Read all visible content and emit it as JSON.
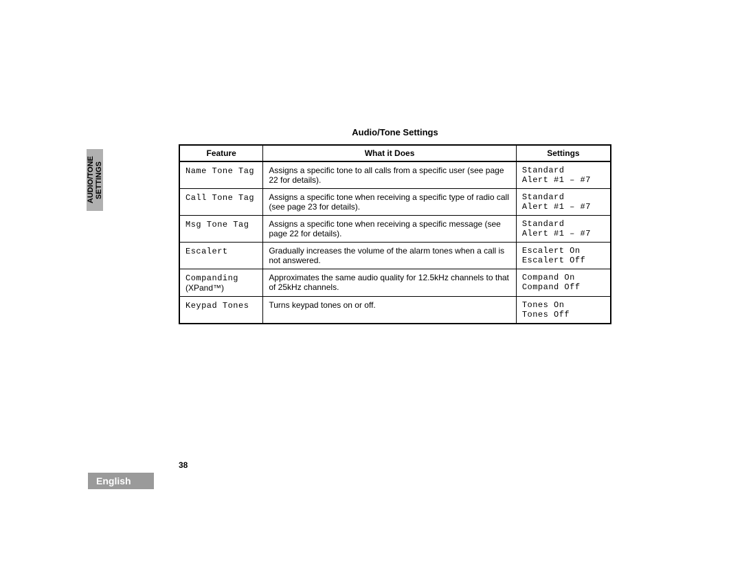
{
  "sideTab": "AUDIO/TONE\nSETTINGS",
  "title": "Audio/Tone Settings",
  "table": {
    "headers": {
      "feature": "Feature",
      "what": "What it Does",
      "settings": "Settings"
    },
    "rows": [
      {
        "feature_mono": "Name Tone Tag",
        "feature_note": "",
        "what": "Assigns a specific tone to all calls from a specific user (see page 22 for details).",
        "settings_l1": "Standard",
        "settings_l2": "Alert #1 – #7"
      },
      {
        "feature_mono": "Call Tone Tag",
        "feature_note": "",
        "what": "Assigns a specific tone when receiving a specific type of radio call (see page 23 for details).",
        "settings_l1": "Standard",
        "settings_l2": "Alert #1 – #7"
      },
      {
        "feature_mono": "Msg Tone Tag",
        "feature_note": "",
        "what": "Assigns a specific tone when receiving a specific message (see page 22 for details).",
        "settings_l1": "Standard",
        "settings_l2": "Alert #1 – #7"
      },
      {
        "feature_mono": "Escalert",
        "feature_note": "",
        "what": "Gradually increases the volume of the alarm tones when a call is not answered.",
        "settings_l1": "Escalert On",
        "settings_l2": "Escalert Off"
      },
      {
        "feature_mono": "Companding",
        "feature_note": "(XPand™)",
        "what": "Approximates the same audio quality for 12.5kHz channels to that of 25kHz channels.",
        "settings_l1": "Compand On",
        "settings_l2": "Compand Off"
      },
      {
        "feature_mono": "Keypad Tones",
        "feature_note": "",
        "what": "Turns keypad tones on or off.",
        "settings_l1": "Tones On",
        "settings_l2": "Tones Off"
      }
    ]
  },
  "pageNumber": "38",
  "language": "English",
  "colors": {
    "sideTabBg": "#b0b0b0",
    "langTabBg": "#9a9a9a",
    "langTabText": "#ffffff",
    "border": "#000000",
    "text": "#000000",
    "background": "#ffffff"
  },
  "typography": {
    "title_fontsize": 13,
    "body_fontsize": 12,
    "mono_family": "Courier New"
  },
  "columnWidths": {
    "feature": 122,
    "what": 370,
    "settings": 138
  }
}
